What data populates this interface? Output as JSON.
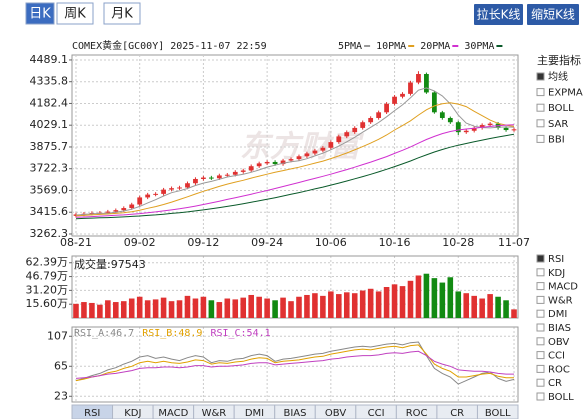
{
  "ui": {
    "period_tabs": [
      "日K",
      "周K",
      "月K"
    ],
    "period_selected": 0,
    "buttons": [
      "拉长K线",
      "缩短K线"
    ],
    "watermark": "东方财富",
    "main_indicators": {
      "title": "主要指标",
      "options": [
        "均线",
        "EXPMA",
        "BOLL",
        "SAR",
        "BBI"
      ],
      "selected": 0
    },
    "sub_indicators": {
      "options": [
        "RSI",
        "KDJ",
        "MACD",
        "W&R",
        "DMI",
        "BIAS",
        "OBV",
        "CCI",
        "ROC",
        "CR",
        "BOLL"
      ],
      "selected": 0
    },
    "bottom_tabs": [
      "RSI",
      "KDJ",
      "MACD",
      "W&R",
      "DMI",
      "BIAS",
      "OBV",
      "CCI",
      "ROC",
      "CR",
      "BOLL"
    ],
    "bottom_selected": 0
  },
  "chart_data": [
    {
      "type": "candlestick",
      "title": "COMEX黄金[GC00Y] 2025-11-07 22:59",
      "categories": [
        "08-21",
        null,
        null,
        null,
        null,
        null,
        null,
        null,
        "09-02",
        null,
        null,
        null,
        null,
        null,
        null,
        null,
        "09-12",
        null,
        null,
        null,
        null,
        null,
        null,
        null,
        "09-24",
        null,
        null,
        null,
        null,
        null,
        null,
        null,
        "10-06",
        null,
        null,
        null,
        null,
        null,
        null,
        null,
        "10-16",
        null,
        null,
        null,
        null,
        null,
        null,
        null,
        "10-28",
        null,
        null,
        null,
        null,
        null,
        null,
        "11-07"
      ],
      "open": [
        3390,
        3400,
        3405,
        3410,
        3412,
        3420,
        3430,
        3445,
        3470,
        3520,
        3540,
        3545,
        3575,
        3585,
        3590,
        3620,
        3650,
        3660,
        3655,
        3675,
        3680,
        3700,
        3710,
        3740,
        3760,
        3770,
        3755,
        3780,
        3790,
        3810,
        3830,
        3850,
        3870,
        3910,
        3950,
        3980,
        4010,
        4050,
        4080,
        4120,
        4180,
        4230,
        4250,
        4330,
        4390,
        4260,
        4120,
        4080,
        4050,
        3980,
        3990,
        4010,
        4030,
        4040,
        4010,
        3995
      ],
      "high": [
        3412,
        3417,
        3422,
        3424,
        3432,
        3442,
        3457,
        3482,
        3532,
        3552,
        3557,
        3587,
        3597,
        3602,
        3632,
        3662,
        3672,
        3672,
        3687,
        3692,
        3712,
        3722,
        3752,
        3772,
        3782,
        3782,
        3792,
        3802,
        3822,
        3842,
        3862,
        3882,
        3922,
        3962,
        3992,
        4022,
        4062,
        4092,
        4132,
        4192,
        4242,
        4262,
        4342,
        4410,
        4400,
        4270,
        4130,
        4090,
        4060,
        4002,
        4022,
        4042,
        4052,
        4052,
        4022,
        4012
      ],
      "low": [
        3378,
        3388,
        3393,
        3398,
        3400,
        3408,
        3418,
        3433,
        3458,
        3508,
        3528,
        3533,
        3563,
        3573,
        3578,
        3608,
        3638,
        3643,
        3643,
        3663,
        3668,
        3688,
        3698,
        3728,
        3748,
        3743,
        3743,
        3768,
        3778,
        3798,
        3818,
        3838,
        3858,
        3898,
        3938,
        3968,
        3998,
        4038,
        4068,
        4108,
        4168,
        4218,
        4238,
        4318,
        4250,
        4110,
        4068,
        4038,
        3960,
        3968,
        3978,
        3998,
        4018,
        3998,
        3983,
        3983
      ],
      "close": [
        3400,
        3405,
        3410,
        3412,
        3420,
        3430,
        3445,
        3470,
        3520,
        3540,
        3545,
        3575,
        3585,
        3590,
        3620,
        3650,
        3660,
        3655,
        3675,
        3680,
        3700,
        3710,
        3740,
        3760,
        3770,
        3755,
        3780,
        3790,
        3810,
        3830,
        3850,
        3870,
        3910,
        3950,
        3980,
        4010,
        4050,
        4080,
        4120,
        4180,
        4230,
        4250,
        4330,
        4390,
        4260,
        4120,
        4080,
        4050,
        3980,
        3990,
        4010,
        4030,
        4040,
        4010,
        3995,
        4000
      ],
      "up_color": "#e03131",
      "down_color": "#128a12",
      "series": [
        {
          "name": "5PMA",
          "color": "#999999",
          "values": [
            3395,
            3400,
            3404,
            3407,
            3409,
            3415,
            3424,
            3437,
            3457,
            3481,
            3504,
            3530,
            3553,
            3567,
            3583,
            3604,
            3621,
            3633,
            3648,
            3664,
            3674,
            3684,
            3697,
            3714,
            3734,
            3747,
            3761,
            3771,
            3779,
            3793,
            3813,
            3832,
            3856,
            3882,
            3912,
            3944,
            3980,
            4014,
            4048,
            4088,
            4132,
            4172,
            4222,
            4276,
            4292,
            4270,
            4236,
            4180,
            4100,
            4044,
            4022,
            4012,
            4010,
            4014,
            4017,
            4015
          ]
        },
        {
          "name": "10PMA",
          "color": "#e0a020",
          "values": [
            3390,
            3393,
            3397,
            3400,
            3403,
            3407,
            3412,
            3419,
            3430,
            3443,
            3455,
            3470,
            3487,
            3505,
            3524,
            3544,
            3563,
            3580,
            3598,
            3614,
            3628,
            3641,
            3656,
            3670,
            3684,
            3697,
            3709,
            3721,
            3733,
            3747,
            3762,
            3776,
            3794,
            3813,
            3833,
            3855,
            3878,
            3903,
            3930,
            3960,
            3995,
            4026,
            4060,
            4100,
            4138,
            4165,
            4180,
            4188,
            4178,
            4160,
            4127,
            4096,
            4065,
            4042,
            4030,
            4020
          ]
        },
        {
          "name": "20PMA",
          "color": "#d030d0",
          "values": [
            3380,
            3382,
            3385,
            3388,
            3391,
            3394,
            3397,
            3401,
            3406,
            3412,
            3418,
            3425,
            3432,
            3440,
            3449,
            3459,
            3470,
            3481,
            3493,
            3506,
            3518,
            3530,
            3543,
            3556,
            3569,
            3583,
            3597,
            3611,
            3625,
            3640,
            3654,
            3669,
            3684,
            3700,
            3716,
            3733,
            3751,
            3769,
            3788,
            3808,
            3830,
            3852,
            3876,
            3902,
            3928,
            3950,
            3970,
            3985,
            3995,
            4002,
            4008,
            4014,
            4020,
            4026,
            4030,
            4032
          ]
        },
        {
          "name": "30PMA",
          "color": "#0a5a2a",
          "values": [
            3370,
            3372,
            3374,
            3376,
            3378,
            3380,
            3383,
            3386,
            3389,
            3393,
            3397,
            3402,
            3407,
            3412,
            3418,
            3425,
            3432,
            3440,
            3448,
            3457,
            3466,
            3476,
            3486,
            3496,
            3507,
            3518,
            3530,
            3542,
            3554,
            3567,
            3580,
            3593,
            3607,
            3621,
            3636,
            3651,
            3667,
            3683,
            3700,
            3718,
            3737,
            3756,
            3777,
            3799,
            3820,
            3840,
            3858,
            3874,
            3888,
            3900,
            3912,
            3924,
            3935,
            3946,
            3956,
            3965
          ]
        }
      ],
      "ylim": [
        3248,
        4524
      ],
      "yticks": [
        3262.3,
        3415.6,
        {
          "value": 3569.0,
          "label": "3569.0"
        },
        3722.3,
        3875.7,
        4029.1,
        4182.4,
        4335.8,
        4489.1
      ],
      "grid": true
    },
    {
      "type": "bar",
      "title": "成交量:97543",
      "values": [
        16,
        18,
        17,
        15,
        20,
        18,
        19,
        22,
        24,
        20,
        21,
        23,
        19,
        20,
        25,
        22,
        24,
        20,
        18,
        22,
        21,
        23,
        26,
        24,
        22,
        20,
        23,
        19,
        24,
        26,
        28,
        25,
        30,
        27,
        29,
        28,
        31,
        33,
        30,
        35,
        38,
        36,
        42,
        48,
        50,
        45,
        40,
        46,
        30,
        28,
        25,
        22,
        27,
        24,
        20,
        9.75
      ],
      "ylim": [
        0,
        70
      ],
      "yticks": [
        {
          "value": 15.6,
          "label": "15.60万"
        },
        {
          "value": 31.2,
          "label": "31.20万"
        },
        {
          "value": 46.79,
          "label": "46.79万"
        },
        {
          "value": 62.39,
          "label": "62.39万"
        }
      ],
      "grid": true
    },
    {
      "type": "line",
      "series": [
        {
          "name": "RSI_A:46.7",
          "color": "#888888",
          "values": [
            45,
            48,
            52,
            55,
            60,
            63,
            68,
            72,
            78,
            80,
            76,
            78,
            75,
            73,
            77,
            80,
            78,
            70,
            73,
            72,
            75,
            76,
            80,
            82,
            80,
            72,
            75,
            76,
            78,
            80,
            82,
            83,
            86,
            88,
            90,
            92,
            93,
            92,
            94,
            96,
            97,
            95,
            98,
            99,
            80,
            62,
            55,
            50,
            40,
            45,
            50,
            55,
            57,
            48,
            44,
            46.7
          ]
        },
        {
          "name": "RSI_B:48.9",
          "color": "#e0a000",
          "values": [
            45,
            47,
            50,
            52,
            56,
            58,
            62,
            65,
            70,
            72,
            70,
            72,
            70,
            69,
            71,
            74,
            73,
            68,
            70,
            69,
            71,
            72,
            75,
            77,
            76,
            70,
            72,
            73,
            74,
            76,
            78,
            79,
            82,
            84,
            86,
            88,
            89,
            88,
            90,
            92,
            93,
            91,
            94,
            95,
            82,
            68,
            62,
            58,
            50,
            50,
            52,
            54,
            55,
            51,
            49,
            48.9
          ]
        },
        {
          "name": "RSI_C:54.1",
          "color": "#c040c0",
          "values": [
            48,
            49,
            50,
            52,
            54,
            55,
            57,
            59,
            62,
            63,
            63,
            64,
            64,
            63,
            64,
            66,
            66,
            64,
            65,
            65,
            66,
            67,
            69,
            70,
            70,
            67,
            68,
            69,
            70,
            71,
            72,
            73,
            75,
            76,
            78,
            79,
            80,
            80,
            81,
            83,
            84,
            83,
            85,
            86,
            80,
            72,
            68,
            65,
            60,
            59,
            58,
            58,
            57,
            55,
            54,
            54.1
          ]
        }
      ],
      "ylim": [
        15,
        120
      ],
      "yticks": [
        23,
        65,
        107
      ],
      "grid": true
    }
  ]
}
